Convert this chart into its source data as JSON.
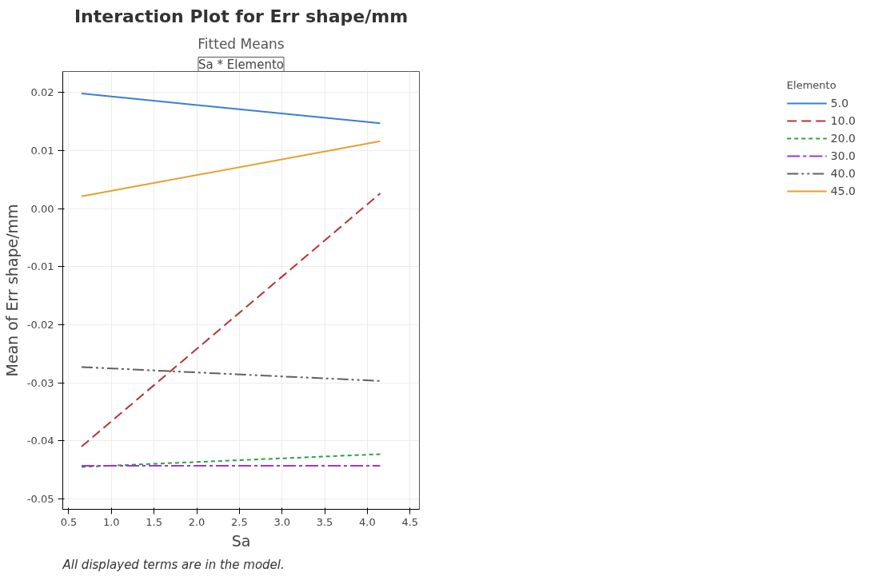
{
  "chart_data": {
    "type": "line",
    "title": "Interaction Plot for Err shape/mm",
    "subtitle": "Fitted Means",
    "xlabel": "Sa",
    "ylabel": "Mean of Err shape/mm",
    "legend_title": "Elemento",
    "legend": "right",
    "grid": true,
    "annotations": [
      "Sa * Elemento",
      "All displayed terms are in the model."
    ],
    "x": [
      0.65,
      4.15
    ],
    "xlim": [
      0.43,
      4.61
    ],
    "xticks": [
      {
        "value": 0.5,
        "label": "0.5"
      },
      {
        "value": 1,
        "label": "1.0"
      },
      {
        "value": 1.5,
        "label": "1.5"
      },
      {
        "value": 2,
        "label": "2.0"
      },
      {
        "value": 2.5,
        "label": "2.5"
      },
      {
        "value": 3,
        "label": "3.0"
      },
      {
        "value": 3.5,
        "label": "3.5"
      },
      {
        "value": 4,
        "label": "4.0"
      },
      {
        "value": 4.5,
        "label": "4.5"
      }
    ],
    "ylim": [
      -0.0518,
      0.0236
    ],
    "yticks": [
      {
        "value": -0.05,
        "label": "-0.05"
      },
      {
        "value": -0.04,
        "label": "-0.04"
      },
      {
        "value": -0.03,
        "label": "-0.03"
      },
      {
        "value": -0.02,
        "label": "-0.02"
      },
      {
        "value": -0.01,
        "label": "-0.01"
      },
      {
        "value": 0,
        "label": "0.00"
      },
      {
        "value": 0.01,
        "label": "0.01"
      },
      {
        "value": 0.02,
        "label": "0.02"
      }
    ],
    "series": [
      {
        "name": "5.0",
        "color": "#3b7dd8",
        "line_style": "solid",
        "values": [
          0.0198,
          0.0147
        ]
      },
      {
        "name": "10.0",
        "color": "#b83232",
        "line_style": "dashed",
        "values": [
          -0.041,
          0.0026
        ]
      },
      {
        "name": "20.0",
        "color": "#2ca040",
        "line_style": "dotted",
        "values": [
          -0.0445,
          -0.0423
        ]
      },
      {
        "name": "30.0",
        "color": "#a033e0",
        "line_style": "dashdot",
        "values": [
          -0.0443,
          -0.0443
        ]
      },
      {
        "name": "40.0",
        "color": "#606060",
        "line_style": "dashdotdot",
        "values": [
          -0.0273,
          -0.0297
        ]
      },
      {
        "name": "45.0",
        "color": "#e8a02e",
        "line_style": "solid",
        "values": [
          0.0021,
          0.0116
        ]
      }
    ]
  }
}
